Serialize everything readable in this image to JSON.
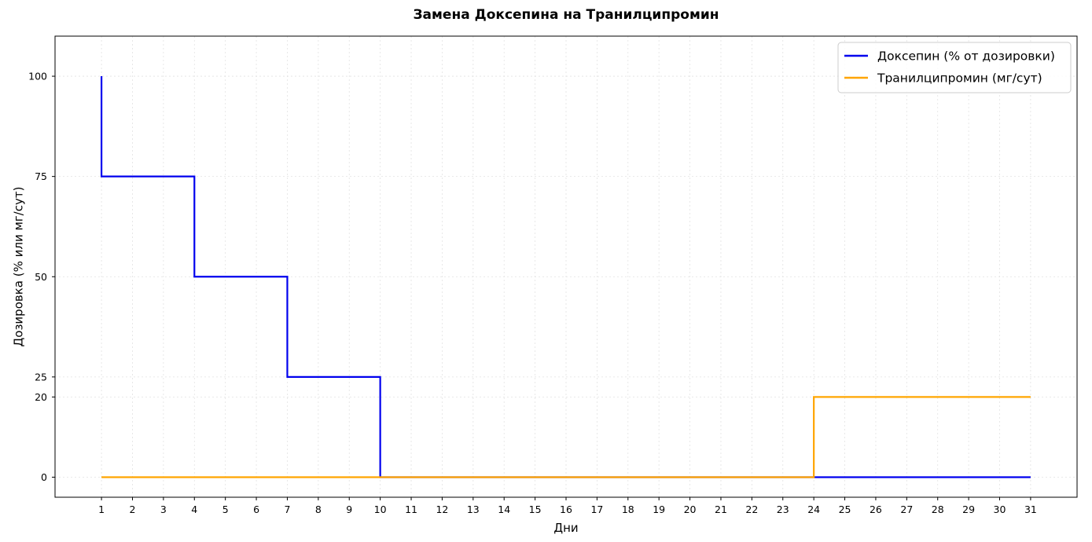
{
  "chart_data": {
    "type": "line",
    "step": "post",
    "title": "Замена Доксепина на Транилципромин",
    "xlabel": "Дни",
    "ylabel": "Дозировка (% или мг/сут)",
    "xlim": [
      -0.5,
      32.5
    ],
    "ylim": [
      -5,
      110
    ],
    "x_ticks": [
      "1",
      "2",
      "3",
      "4",
      "5",
      "6",
      "7",
      "8",
      "9",
      "10",
      "11",
      "12",
      "13",
      "14",
      "15",
      "16",
      "17",
      "18",
      "19",
      "20",
      "21",
      "22",
      "23",
      "24",
      "25",
      "26",
      "27",
      "28",
      "29",
      "30",
      "31"
    ],
    "y_ticks": [
      "0",
      "20",
      "25",
      "50",
      "75",
      "100"
    ],
    "grid": true,
    "legend_position": "top-right",
    "series": [
      {
        "name": "Доксепин (% от дозировки)",
        "color": "#0000ee",
        "points": [
          [
            1,
            100
          ],
          [
            1,
            75
          ],
          [
            4,
            50
          ],
          [
            7,
            25
          ],
          [
            10,
            0
          ],
          [
            31,
            0
          ]
        ]
      },
      {
        "name": "Транилципромин (мг/сут)",
        "color": "#ffa500",
        "points": [
          [
            1,
            0
          ],
          [
            24,
            20
          ],
          [
            31,
            20
          ]
        ]
      }
    ]
  }
}
